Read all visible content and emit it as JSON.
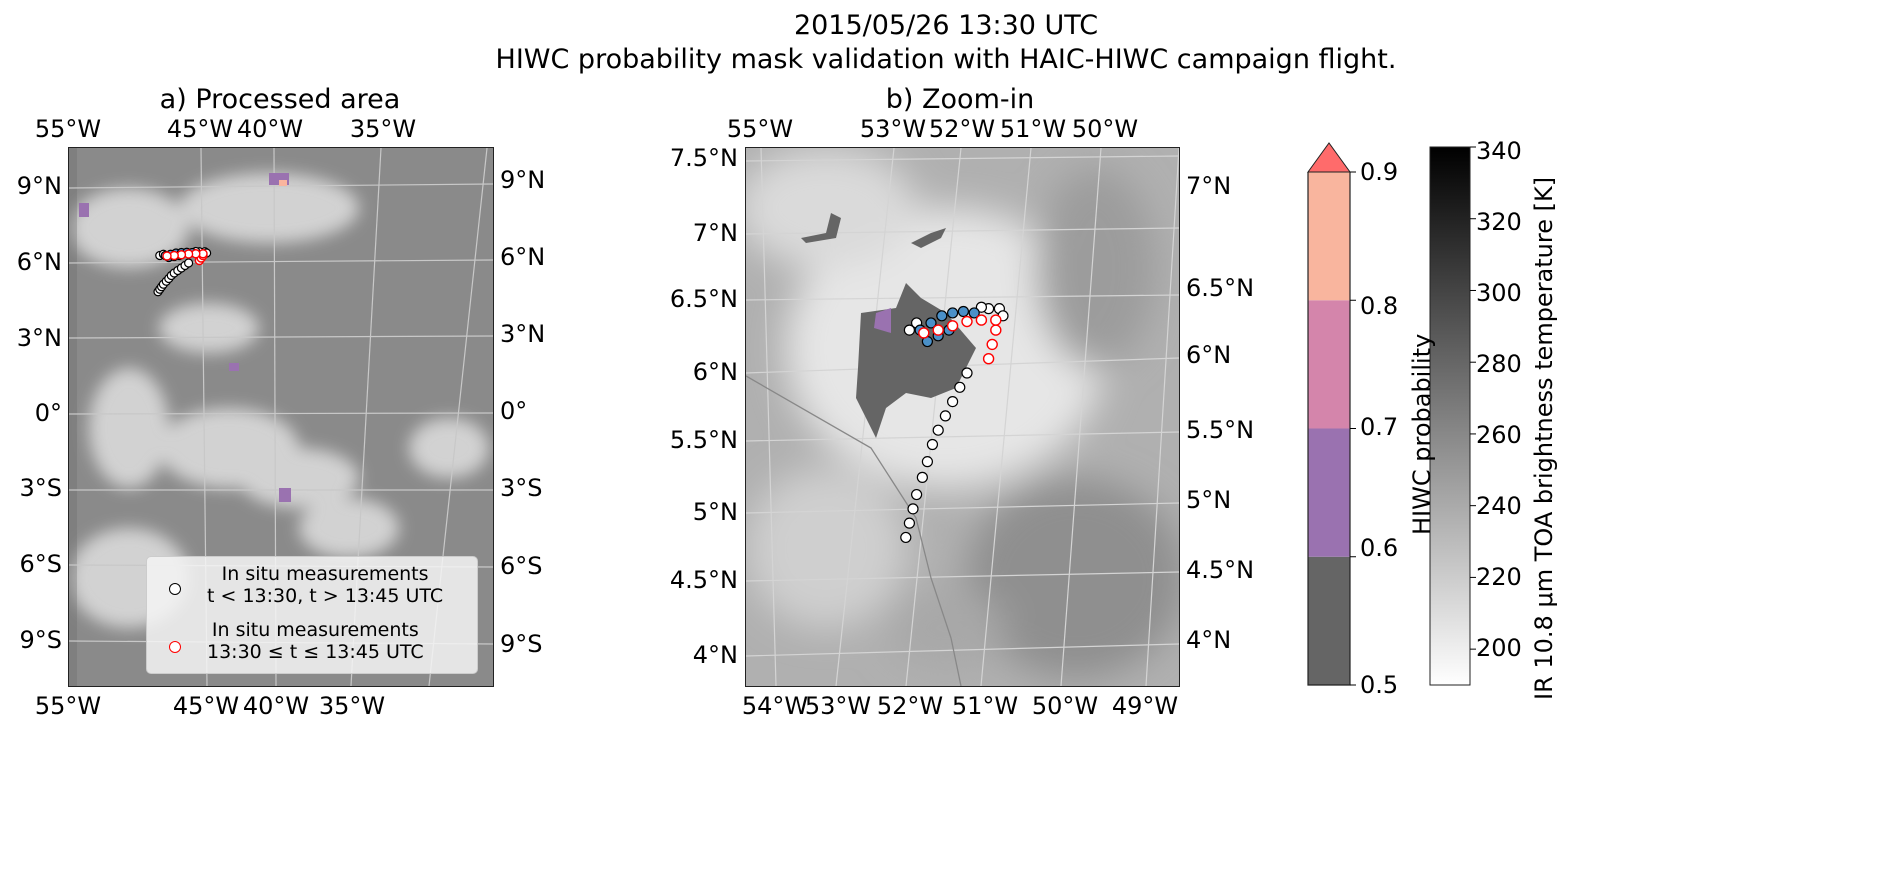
{
  "title": {
    "line1": "2015/05/26 13:30 UTC",
    "line2": "HIWC probability mask validation with HAIC-HIWC campaign flight."
  },
  "panel_a": {
    "title": "a) Processed area",
    "top_lon": [
      "55°W",
      "45°W",
      "40°W",
      "35°W"
    ],
    "bottom_lon": [
      "55°W",
      "45°W",
      "40°W",
      "35°W"
    ],
    "left_lat": [
      "9°N",
      "6°N",
      "3°N",
      "0°",
      "3°S",
      "6°S",
      "9°S"
    ],
    "right_lat": [
      "9°N",
      "6°N",
      "3°N",
      "0°",
      "3°S",
      "6°S",
      "9°S"
    ],
    "legend": [
      {
        "line1": "In situ measurements",
        "line2": "t < 13:30, t > 13:45 UTC",
        "marker_color": "#000000"
      },
      {
        "line1": "In situ measurements",
        "line2": "13:30 ≤ t ≤ 13:45 UTC",
        "marker_color": "#ff0000"
      }
    ]
  },
  "panel_b": {
    "title": "b) Zoom-in",
    "top_lon": [
      "55°W",
      "53°W",
      "52°W",
      "51°W",
      "50°W"
    ],
    "bottom_lon": [
      "54°W",
      "53°W",
      "52°W",
      "51°W",
      "50°W",
      "49°W"
    ],
    "left_lat": [
      "7.5°N",
      "7°N",
      "6.5°N",
      "6°N",
      "5.5°N",
      "5°N",
      "4.5°N",
      "4°N"
    ],
    "right_lat": [
      "7°N",
      "6.5°N",
      "6°N",
      "5.5°N",
      "5°N",
      "4.5°N",
      "4°N"
    ],
    "flight_track": {
      "outside_window": [
        [
          -52.35,
          4.85
        ],
        [
          -52.3,
          4.95
        ],
        [
          -52.25,
          5.05
        ],
        [
          -52.2,
          5.15
        ],
        [
          -52.12,
          5.27
        ],
        [
          -52.05,
          5.38
        ],
        [
          -51.98,
          5.5
        ],
        [
          -51.9,
          5.6
        ],
        [
          -51.8,
          5.7
        ],
        [
          -51.7,
          5.8
        ],
        [
          -51.6,
          5.9
        ],
        [
          -51.5,
          6.0
        ],
        [
          -51.05,
          6.45
        ],
        [
          -51.0,
          6.4
        ],
        [
          -52.3,
          6.3
        ],
        [
          -52.2,
          6.35
        ],
        [
          -51.2,
          6.45
        ],
        [
          -51.3,
          6.46
        ]
      ],
      "inside_window": [
        [
          -51.2,
          6.1
        ],
        [
          -51.15,
          6.2
        ],
        [
          -51.1,
          6.3
        ],
        [
          -51.1,
          6.37
        ],
        [
          -51.3,
          6.37
        ],
        [
          -51.5,
          6.36
        ],
        [
          -51.7,
          6.33
        ],
        [
          -51.9,
          6.3
        ],
        [
          -52.1,
          6.28
        ]
      ],
      "in_mask_colored": [
        [
          -52.15,
          6.3
        ],
        [
          -52.0,
          6.35
        ],
        [
          -51.85,
          6.4
        ],
        [
          -51.7,
          6.42
        ],
        [
          -51.55,
          6.43
        ],
        [
          -51.4,
          6.42
        ],
        [
          -52.05,
          6.22
        ],
        [
          -51.9,
          6.26
        ],
        [
          -51.75,
          6.3
        ]
      ]
    }
  },
  "colorbar_hiwc": {
    "label": "HIWC probability",
    "ticks": [
      "0.5",
      "0.6",
      "0.7",
      "0.8",
      "0.9"
    ],
    "bins": [
      {
        "from": 0.5,
        "to": 0.6,
        "color": "#656565"
      },
      {
        "from": 0.6,
        "to": 0.7,
        "color": "#9a72b0"
      },
      {
        "from": 0.7,
        "to": 0.8,
        "color": "#d485ab"
      },
      {
        "from": 0.8,
        "to": 0.9,
        "color": "#f9b59e"
      }
    ],
    "extend_color": "#ff6b6b"
  },
  "colorbar_temp": {
    "label": "IR 10.8 μm TOA brightness temperature [K]",
    "ticks": [
      "200",
      "220",
      "240",
      "260",
      "280",
      "300",
      "320",
      "340"
    ],
    "range": [
      190,
      340
    ]
  }
}
